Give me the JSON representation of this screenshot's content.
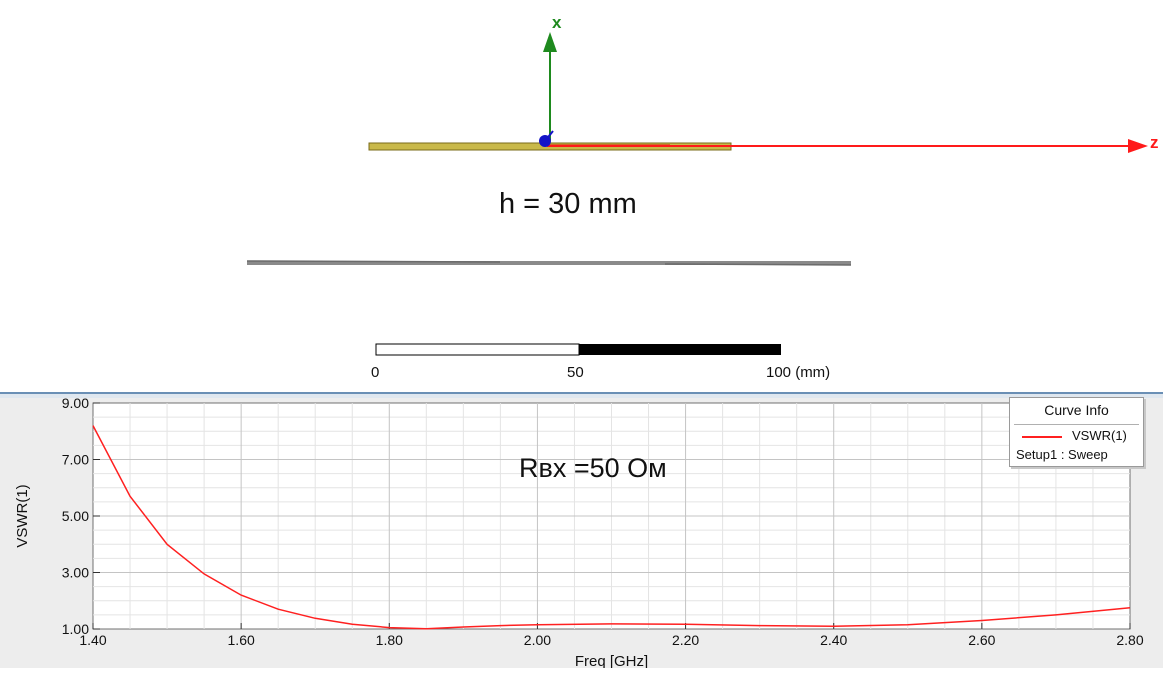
{
  "geometry_view": {
    "axis_x_label": "x",
    "axis_z_label": "z",
    "height_annotation": "h = 30 mm",
    "scale_bar": {
      "ticks": [
        "0",
        "50",
        "100 (mm)"
      ]
    },
    "colors": {
      "x_axis": "#1e8a1e",
      "z_axis": "#ff1a1a",
      "dipole": "#c8b84a",
      "reflector": "#8a8a8a",
      "feed": "#1414c8"
    }
  },
  "chart_data": {
    "type": "line",
    "xlabel": "Freq [GHz]",
    "ylabel": "VSWR(1)",
    "xlim": [
      1.4,
      2.8
    ],
    "ylim": [
      1.0,
      9.0
    ],
    "x_ticks": [
      "1.40",
      "1.60",
      "1.80",
      "2.00",
      "2.20",
      "2.40",
      "2.60",
      "2.80"
    ],
    "y_ticks": [
      "1.00",
      "3.00",
      "5.00",
      "7.00",
      "9.00"
    ],
    "annotation": "Rвх =50 Ом",
    "grid": true,
    "legend": {
      "title": "Curve Info",
      "position": "top-right",
      "entries": [
        {
          "name": "VSWR(1)",
          "source": "Setup1 : Sweep",
          "color": "#ff2020"
        }
      ]
    },
    "series": [
      {
        "name": "VSWR(1)",
        "color": "#ff2020",
        "x": [
          1.4,
          1.45,
          1.5,
          1.55,
          1.6,
          1.65,
          1.7,
          1.75,
          1.8,
          1.85,
          1.9,
          1.95,
          2.0,
          2.1,
          2.2,
          2.3,
          2.4,
          2.5,
          2.6,
          2.7,
          2.8
        ],
        "y": [
          8.2,
          5.7,
          4.0,
          2.95,
          2.2,
          1.7,
          1.38,
          1.17,
          1.05,
          1.01,
          1.07,
          1.12,
          1.15,
          1.18,
          1.17,
          1.12,
          1.1,
          1.15,
          1.3,
          1.5,
          1.75
        ]
      }
    ]
  }
}
